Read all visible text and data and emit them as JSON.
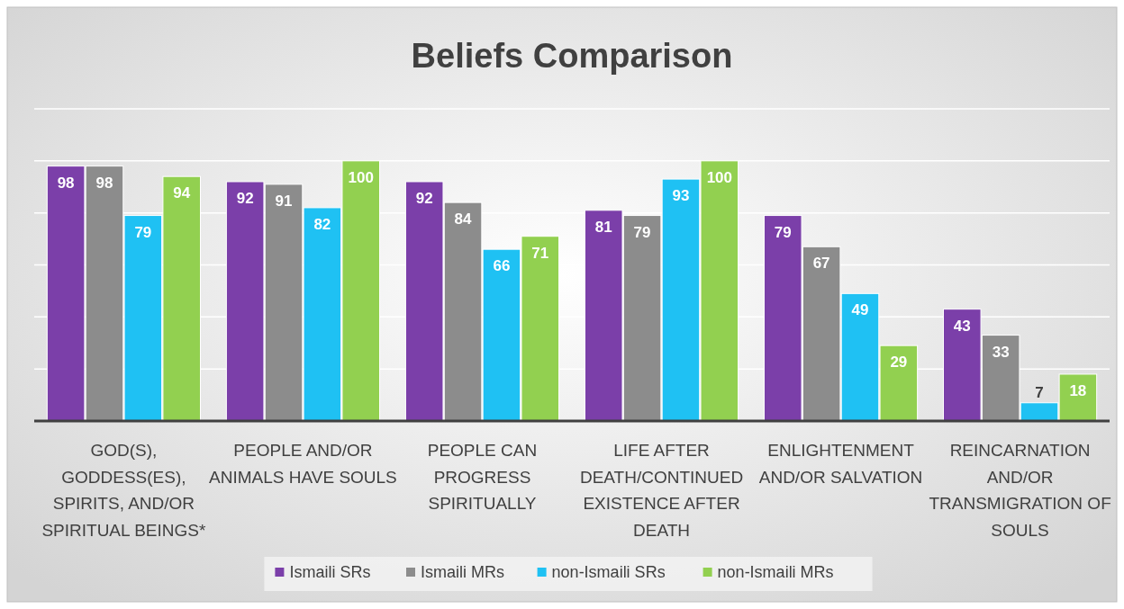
{
  "chart_data": {
    "type": "bar",
    "title": "Beliefs Comparison",
    "categories": [
      "GOD(S), GODDESS(ES), SPIRITS, AND/OR SPIRITUAL BEINGS*",
      "PEOPLE AND/OR ANIMALS HAVE SOULS",
      "PEOPLE CAN PROGRESS SPIRITUALLY",
      "LIFE AFTER DEATH/CONTINUED EXISTENCE AFTER DEATH",
      "ENLIGHTENMENT AND/OR SALVATION",
      "REINCARNATION AND/OR TRANSMIGRATION OF SOULS"
    ],
    "series": [
      {
        "name": "Ismaili SRs",
        "color": "#7b3fa9",
        "values": [
          98,
          92,
          92,
          81,
          79,
          43
        ]
      },
      {
        "name": "Ismaili MRs",
        "color": "#8c8c8c",
        "values": [
          98,
          91,
          84,
          79,
          67,
          33
        ]
      },
      {
        "name": "non-Ismaili SRs",
        "color": "#1fc1f3",
        "values": [
          79,
          82,
          66,
          93,
          49,
          7
        ]
      },
      {
        "name": "non-Ismaili MRs",
        "color": "#92d050",
        "values": [
          94,
          100,
          71,
          100,
          29,
          18
        ]
      }
    ],
    "ylim": [
      0,
      120
    ],
    "yticks": [
      {
        "value": 0,
        "label": null
      },
      {
        "value": 20,
        "label": null
      },
      {
        "value": 40,
        "label": null
      },
      {
        "value": 60,
        "label": null
      },
      {
        "value": 80,
        "label": null
      },
      {
        "value": 100,
        "label": null
      },
      {
        "value": 120,
        "label": null
      }
    ],
    "grid": "y",
    "tick_labels": "x",
    "data_labels": true,
    "legend": "bottom"
  }
}
